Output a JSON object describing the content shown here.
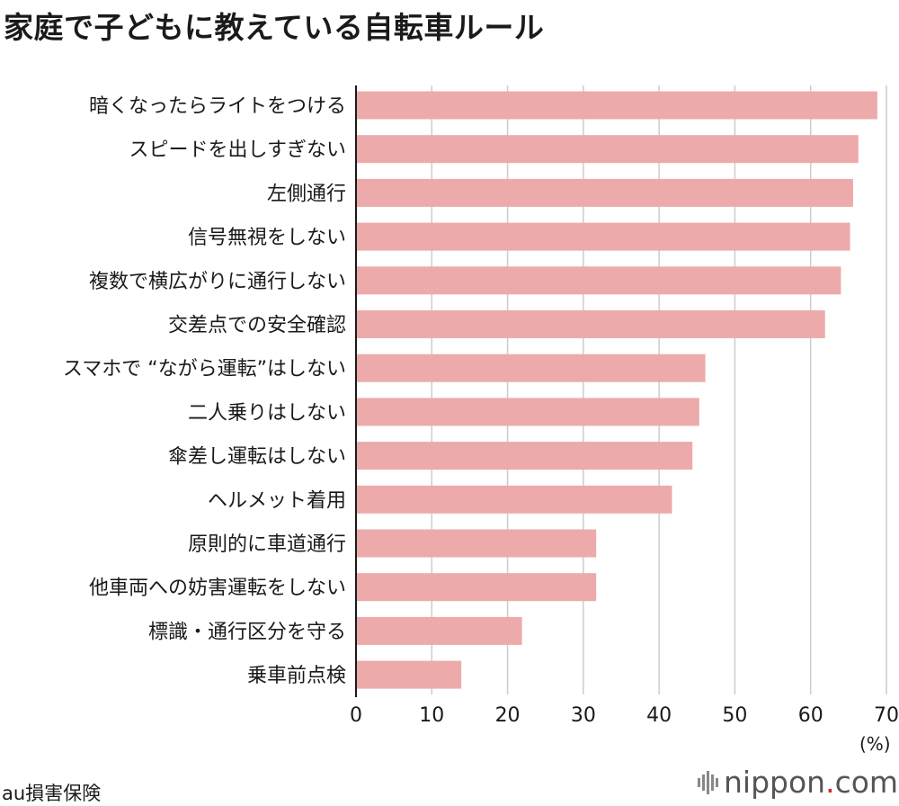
{
  "title": "家庭で子どもに教えている自転車ルール",
  "source": "au損害保険",
  "logo": {
    "name": "nippon",
    "dot": ".",
    "suffix": "com"
  },
  "colors": {
    "bar": "#edaaaa",
    "grid": "#cccccc",
    "axis": "#1a1a1a",
    "logo_dot": "#d8232a"
  },
  "chart_data": {
    "type": "bar",
    "orientation": "horizontal",
    "title": "家庭で子どもに教えている自転車ルール",
    "categories": [
      "暗くなったらライトをつける",
      "スピードを出しすぎない",
      "左側通行",
      "信号無視をしない",
      "複数で横広がりに通行しない",
      "交差点での安全確認",
      "スマホで “ながら運転”はしない",
      "二人乗りはしない",
      "傘差し運転はしない",
      "ヘルメット着用",
      "原則的に車道通行",
      "他車両への妨害運転をしない",
      "標識・通行区分を守る",
      "乗車前点検"
    ],
    "values": [
      68.8,
      66.3,
      65.6,
      65.2,
      64.0,
      61.9,
      46.1,
      45.3,
      44.4,
      41.7,
      31.7,
      31.7,
      21.9,
      13.9
    ],
    "xlabel": "",
    "unit_label": "(%)",
    "xlim": [
      0,
      70
    ],
    "xticks": [
      "0",
      "10",
      "20",
      "30",
      "40",
      "50",
      "60",
      "70"
    ],
    "grid": true
  }
}
